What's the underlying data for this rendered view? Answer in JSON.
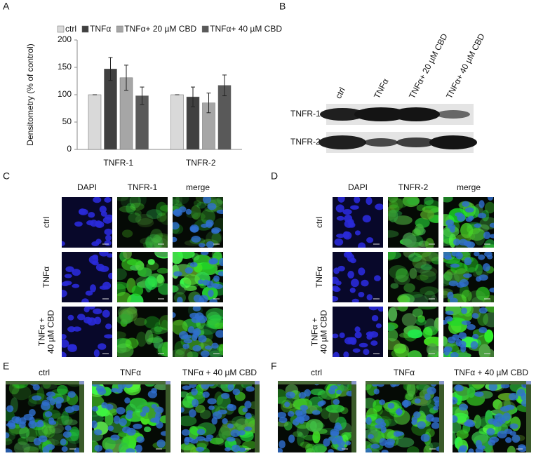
{
  "panels": [
    "A",
    "B",
    "C",
    "D",
    "E",
    "F"
  ],
  "chart_data": {
    "type": "bar",
    "ylabel": "Densitometry (% of control)",
    "categories": [
      "TNFR-1",
      "TNFR-2"
    ],
    "series": [
      {
        "name": "ctrl",
        "color": "#d9d9d9",
        "values": [
          100,
          100
        ],
        "errors": [
          0,
          0
        ]
      },
      {
        "name": "TNFα",
        "color": "#404040",
        "values": [
          147,
          96
        ],
        "errors": [
          21,
          18
        ]
      },
      {
        "name": "TNFα+ 20 µM CBD",
        "color": "#a6a6a6",
        "values": [
          131,
          85
        ],
        "errors": [
          23,
          18
        ]
      },
      {
        "name": "TNFα+ 40 µM CBD",
        "color": "#595959",
        "values": [
          98,
          117
        ],
        "errors": [
          16,
          19
        ]
      }
    ],
    "ylim": [
      0,
      200
    ],
    "yticks": [
      0,
      50,
      100,
      150,
      200
    ]
  },
  "blot": {
    "lanes": [
      "ctrl",
      "TNFα",
      "TNFα+ 20 µM CBD",
      "TNFα+ 40 µM CBD"
    ],
    "rows": [
      "TNFR-1",
      "TNFR-2"
    ]
  },
  "panel_c": {
    "columns": [
      "DAPI",
      "TNFR-1",
      "merge"
    ],
    "rows": [
      [
        "ctrl"
      ],
      [
        "TNFα"
      ],
      [
        "TNFα +",
        "40 µM CBD"
      ]
    ]
  },
  "panel_d": {
    "columns": [
      "DAPI",
      "TNFR-2",
      "merge"
    ],
    "rows": [
      [
        "ctrl"
      ],
      [
        "TNFα"
      ],
      [
        "TNFα +",
        "40 µM CBD"
      ]
    ]
  },
  "panel_e": {
    "columns": [
      "ctrl",
      "TNFα",
      "TNFα + 40 µM CBD"
    ]
  },
  "panel_f": {
    "columns": [
      "ctrl",
      "TNFα",
      "TNFα + 40 µM CBD"
    ]
  }
}
